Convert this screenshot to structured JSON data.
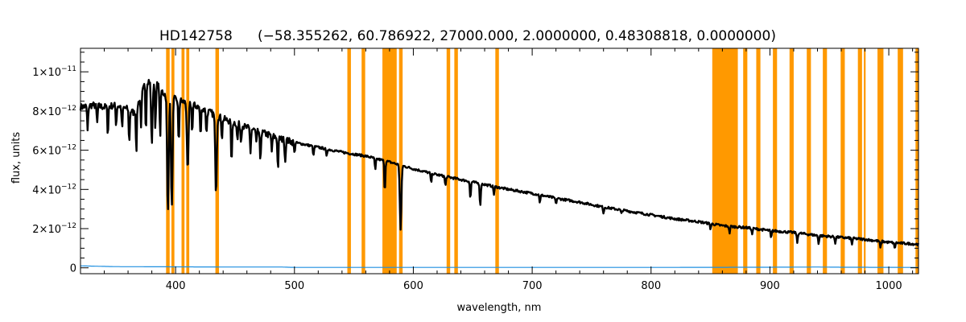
{
  "chart_data": {
    "type": "line",
    "title": "HD142758",
    "subtitle": "(−58.355262, 60.786922, 27000.000, 2.0000000, 0.48308818, 0.0000000)",
    "xlabel": "wavelength, nm",
    "ylabel": "flux, units",
    "xlim": [
      320,
      1025
    ],
    "ylim": [
      -3e-13,
      1.12e-11
    ],
    "x_ticks": [
      400,
      500,
      600,
      700,
      800,
      900,
      1000
    ],
    "y_ticks": [
      {
        "value": 0,
        "mantissa": "0",
        "exponent": ""
      },
      {
        "value": 2e-12,
        "mantissa": "2×10",
        "exponent": "−12"
      },
      {
        "value": 4e-12,
        "mantissa": "4×10",
        "exponent": "−12"
      },
      {
        "value": 6e-12,
        "mantissa": "6×10",
        "exponent": "−12"
      },
      {
        "value": 8e-12,
        "mantissa": "8×10",
        "exponent": "−12"
      },
      {
        "value": 1e-11,
        "mantissa": "1×10",
        "exponent": "−11"
      }
    ],
    "colors": {
      "spectrum": "#000000",
      "error": "#1f8fe0",
      "mask": "#ff9900",
      "frame": "#000000"
    },
    "masked_bands_nm": [
      [
        392,
        395
      ],
      [
        396.5,
        399
      ],
      [
        405,
        407.5
      ],
      [
        409,
        411.5
      ],
      [
        433.5,
        436.5
      ],
      [
        544.5,
        547.5
      ],
      [
        556.5,
        559.5
      ],
      [
        574,
        586
      ],
      [
        588,
        591
      ],
      [
        628,
        631
      ],
      [
        634.5,
        637.5
      ],
      [
        669,
        672
      ],
      [
        851.5,
        873
      ],
      [
        877.5,
        881
      ],
      [
        888.5,
        892
      ],
      [
        902.5,
        906
      ],
      [
        916.5,
        920
      ],
      [
        931,
        934.5
      ],
      [
        944.5,
        948
      ],
      [
        959.5,
        963
      ],
      [
        974,
        977.5
      ],
      [
        979,
        980.5
      ],
      [
        990.5,
        995.5
      ],
      [
        1007.5,
        1012
      ],
      [
        1022.5,
        1025
      ]
    ],
    "series": [
      {
        "kind": "spectrum",
        "x": [
          320,
          330,
          340,
          350,
          360,
          365,
          370,
          375,
          380,
          385,
          390,
          395,
          400,
          410,
          420,
          430,
          440,
          450,
          460,
          470,
          480,
          490,
          500,
          520,
          540,
          560,
          580,
          600,
          620,
          640,
          660,
          680,
          700,
          720,
          740,
          760,
          780,
          800,
          820,
          840,
          860,
          880,
          900,
          920,
          940,
          960,
          980,
          1000,
          1025
        ],
        "values": [
          8.2e-12,
          8.3e-12,
          8.2e-12,
          8.3e-12,
          8.1e-12,
          7.9e-12,
          8.6e-12,
          9.5e-12,
          9.6e-12,
          9.3e-12,
          8.9e-12,
          8.7e-12,
          8.6e-12,
          8.4e-12,
          8.2e-12,
          7.9e-12,
          7.6e-12,
          7.4e-12,
          7.15e-12,
          6.95e-12,
          6.75e-12,
          6.55e-12,
          6.4e-12,
          6.15e-12,
          5.9e-12,
          5.7e-12,
          5.4e-12,
          5.05e-12,
          4.75e-12,
          4.5e-12,
          4.25e-12,
          4e-12,
          3.8e-12,
          3.55e-12,
          3.35e-12,
          3.1e-12,
          2.9e-12,
          2.7e-12,
          2.5e-12,
          2.35e-12,
          2.15e-12,
          2.05e-12,
          1.9e-12,
          1.8e-12,
          1.65e-12,
          1.55e-12,
          1.45e-12,
          1.3e-12,
          1.2e-12
        ]
      },
      {
        "kind": "error",
        "x": [
          320,
          350,
          400,
          450,
          490,
          500,
          600,
          700,
          800,
          900,
          940,
          960,
          1025
        ],
        "values": [
          1e-13,
          6e-14,
          5e-14,
          4e-14,
          4e-14,
          2e-14,
          2e-14,
          2e-14,
          2e-14,
          3e-14,
          4e-14,
          3e-14,
          2e-14
        ]
      }
    ],
    "absorption_lines": [
      {
        "nm": 326,
        "depth": 1.3e-12
      },
      {
        "nm": 334,
        "depth": 9e-13
      },
      {
        "nm": 343,
        "depth": 1.4e-12
      },
      {
        "nm": 350,
        "depth": 1e-12
      },
      {
        "nm": 355,
        "depth": 1.1e-12
      },
      {
        "nm": 361,
        "depth": 1.7e-12
      },
      {
        "nm": 367,
        "depth": 2.2e-12
      },
      {
        "nm": 371,
        "depth": 1.5e-12
      },
      {
        "nm": 375,
        "depth": 2.5e-12
      },
      {
        "nm": 380,
        "depth": 3.2e-12
      },
      {
        "nm": 383,
        "depth": 2.3e-12
      },
      {
        "nm": 387,
        "depth": 2.5e-12
      },
      {
        "nm": 393.5,
        "depth": 6e-12
      },
      {
        "nm": 396.8,
        "depth": 5.7e-12
      },
      {
        "nm": 402.6,
        "depth": 2.3e-12
      },
      {
        "nm": 410.2,
        "depth": 3.6e-12
      },
      {
        "nm": 414,
        "depth": 1.4e-12
      },
      {
        "nm": 421,
        "depth": 1.5e-12
      },
      {
        "nm": 426,
        "depth": 1.2e-12
      },
      {
        "nm": 434.0,
        "depth": 3.9e-12
      },
      {
        "nm": 439,
        "depth": 1e-12
      },
      {
        "nm": 447.1,
        "depth": 2.2e-12
      },
      {
        "nm": 452,
        "depth": 9e-13
      },
      {
        "nm": 455,
        "depth": 8e-13
      },
      {
        "nm": 463,
        "depth": 1.2e-12
      },
      {
        "nm": 468,
        "depth": 7e-13
      },
      {
        "nm": 471.3,
        "depth": 1.6e-12
      },
      {
        "nm": 481,
        "depth": 8e-13
      },
      {
        "nm": 486.1,
        "depth": 1.6e-12
      },
      {
        "nm": 492.2,
        "depth": 1.1e-12
      },
      {
        "nm": 500,
        "depth": 6e-13
      },
      {
        "nm": 516,
        "depth": 5e-13
      },
      {
        "nm": 527,
        "depth": 4e-13
      },
      {
        "nm": 568,
        "depth": 6e-13
      },
      {
        "nm": 576,
        "depth": 1.6e-12
      },
      {
        "nm": 589.3,
        "depth": 3.3e-12
      },
      {
        "nm": 615,
        "depth": 5e-13
      },
      {
        "nm": 627,
        "depth": 5e-13
      },
      {
        "nm": 648,
        "depth": 9e-13
      },
      {
        "nm": 656.3,
        "depth": 1.2e-12
      },
      {
        "nm": 667.8,
        "depth": 4e-13
      },
      {
        "nm": 706.5,
        "depth": 4e-13
      },
      {
        "nm": 720,
        "depth": 3e-13
      },
      {
        "nm": 760,
        "depth": 3e-13
      },
      {
        "nm": 775,
        "depth": 2e-13
      },
      {
        "nm": 850,
        "depth": 2.5e-13
      },
      {
        "nm": 866,
        "depth": 3.5e-13
      },
      {
        "nm": 885,
        "depth": 3e-13
      },
      {
        "nm": 901,
        "depth": 4e-13
      },
      {
        "nm": 923,
        "depth": 5e-13
      },
      {
        "nm": 941,
        "depth": 4e-13
      },
      {
        "nm": 955,
        "depth": 3e-13
      },
      {
        "nm": 969,
        "depth": 3e-13
      },
      {
        "nm": 993,
        "depth": 3.5e-13
      },
      {
        "nm": 1005,
        "depth": 3e-13
      }
    ],
    "grid": false,
    "legend": "none"
  }
}
